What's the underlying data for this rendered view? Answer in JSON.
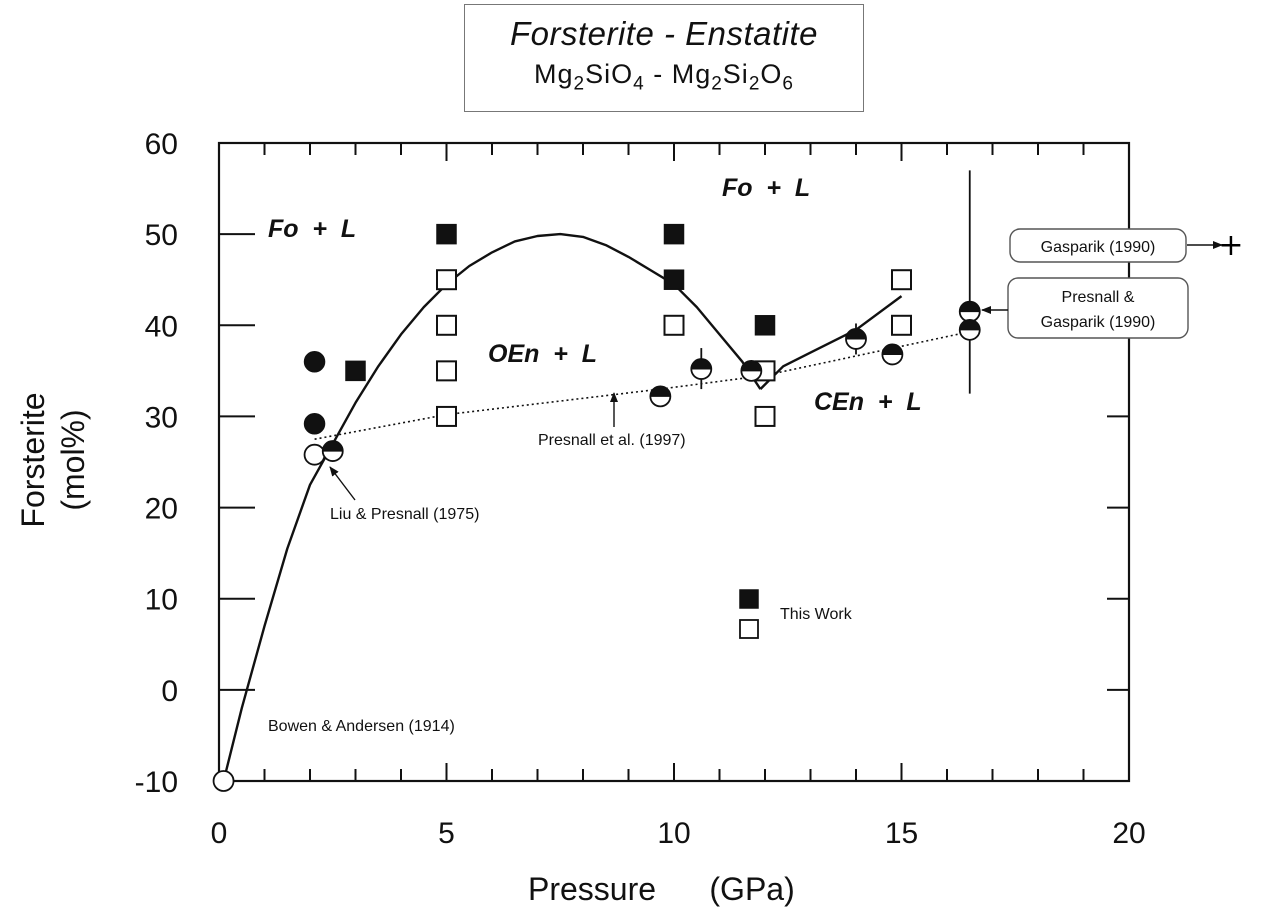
{
  "chart_data": {
    "type": "scatter",
    "title": "Forsterite - Enstatite",
    "subtitle": {
      "parts": [
        "Mg",
        "2",
        "SiO",
        "4",
        " - ",
        "Mg",
        "2",
        "Si",
        "2",
        "O",
        "6"
      ],
      "text": "Mg2SiO4 - Mg2Si2O6"
    },
    "xlabel": "Pressure      (GPa)",
    "ylabel": "Forsterite",
    "ylabel_unit": "(mol%)",
    "xlim": [
      0,
      20
    ],
    "ylim": [
      -10,
      60
    ],
    "x_ticks": [
      "0",
      "5",
      "10",
      "15",
      "20"
    ],
    "y_ticks": [
      "60",
      "50",
      "40",
      "30",
      "20",
      "10",
      "0",
      "-10"
    ],
    "x_tick_values": [
      0,
      5,
      10,
      15,
      20
    ],
    "y_tick_values": [
      60,
      50,
      40,
      30,
      20,
      10,
      0,
      -10
    ],
    "minor_x_step": 1,
    "minor_y_step": 10,
    "grid": false,
    "legend": {
      "position": "lower-center",
      "entries": [
        {
          "label": "This Work",
          "markers": [
            "filled-square",
            "open-square"
          ]
        }
      ]
    },
    "regions": [
      {
        "label": "Fo  +  L",
        "x": 2.4,
        "y": 50
      },
      {
        "label": "Fo  +  L",
        "x": 12.7,
        "y": 55
      },
      {
        "label": "OEn  +  L",
        "x": 7.6,
        "y": 36.5
      },
      {
        "label": "CEn  +  L",
        "x": 14.3,
        "y": 31
      }
    ],
    "series": [
      {
        "marker": "filled-square",
        "points": [
          [
            3,
            35
          ],
          [
            5,
            50
          ],
          [
            10,
            50
          ],
          [
            10,
            45
          ],
          [
            12,
            40
          ],
          [
            12,
            35
          ],
          [
            15,
            45
          ]
        ]
      },
      {
        "marker": "open-square",
        "points": [
          [
            5,
            45
          ],
          [
            5,
            40
          ],
          [
            5,
            35
          ],
          [
            5,
            30
          ],
          [
            10,
            40
          ],
          [
            12,
            35
          ],
          [
            12,
            30
          ],
          [
            15,
            40
          ],
          [
            15,
            45
          ]
        ]
      },
      {
        "marker": "filled-circle",
        "points": [
          [
            2.1,
            36
          ],
          [
            2.1,
            29.2
          ]
        ]
      },
      {
        "marker": "open-circle",
        "points": [
          [
            2.1,
            25.8
          ],
          [
            0.1,
            -10
          ]
        ]
      },
      {
        "marker": "half-filled-top-circle",
        "points": [
          [
            2.5,
            26.2
          ],
          [
            9.7,
            32.2
          ],
          [
            10.6,
            35.2
          ],
          [
            11.7,
            35
          ],
          [
            14,
            38.5
          ],
          [
            14.8,
            36.8
          ],
          [
            16.5,
            41.5
          ],
          [
            16.5,
            39.5
          ]
        ]
      }
    ],
    "error_bars": [
      {
        "x": 10.6,
        "y_low": 33,
        "y_high": 37.5
      },
      {
        "x": 14,
        "y_low": 36.8,
        "y_high": 40.2
      },
      {
        "x": 16.5,
        "y_low": 32.5,
        "y_high": 57
      }
    ],
    "lines": [
      {
        "name": "solid-curve-1",
        "style": "solid",
        "points": [
          [
            0.1,
            -10
          ],
          [
            0.5,
            -2
          ],
          [
            1,
            7
          ],
          [
            1.5,
            15.5
          ],
          [
            2,
            22.5
          ],
          [
            2.5,
            27
          ],
          [
            3,
            31.5
          ],
          [
            3.5,
            35.5
          ],
          [
            4,
            39
          ],
          [
            4.5,
            42
          ],
          [
            5,
            44.5
          ],
          [
            5.5,
            46.5
          ],
          [
            6,
            48
          ],
          [
            6.5,
            49.2
          ],
          [
            7,
            49.8
          ],
          [
            7.5,
            50
          ],
          [
            8,
            49.7
          ],
          [
            8.5,
            48.8
          ],
          [
            9,
            47.5
          ],
          [
            9.5,
            46
          ],
          [
            10,
            44.5
          ],
          [
            10.5,
            42
          ],
          [
            11,
            39
          ],
          [
            11.5,
            36
          ],
          [
            11.9,
            33
          ]
        ]
      },
      {
        "name": "solid-curve-2",
        "style": "solid",
        "points": [
          [
            11.9,
            33
          ],
          [
            12.4,
            35.5
          ],
          [
            13,
            37
          ],
          [
            14,
            39.5
          ],
          [
            15,
            43.2
          ]
        ]
      },
      {
        "name": "presnall-1997-line",
        "style": "dotted",
        "points": [
          [
            2.1,
            27.5
          ],
          [
            5,
            30.2
          ],
          [
            9.7,
            33
          ],
          [
            12,
            34.5
          ],
          [
            16.5,
            39.3
          ]
        ]
      }
    ],
    "annotations": [
      {
        "text": "Bowen & Andersen (1914)"
      },
      {
        "text": "Liu & Presnall (1975)"
      },
      {
        "text": "Presnall et al. (1997)"
      },
      {
        "text": "Gasparik (1990)"
      },
      {
        "text": "Presnall &"
      },
      {
        "text": "Gasparik (1990)"
      }
    ]
  }
}
